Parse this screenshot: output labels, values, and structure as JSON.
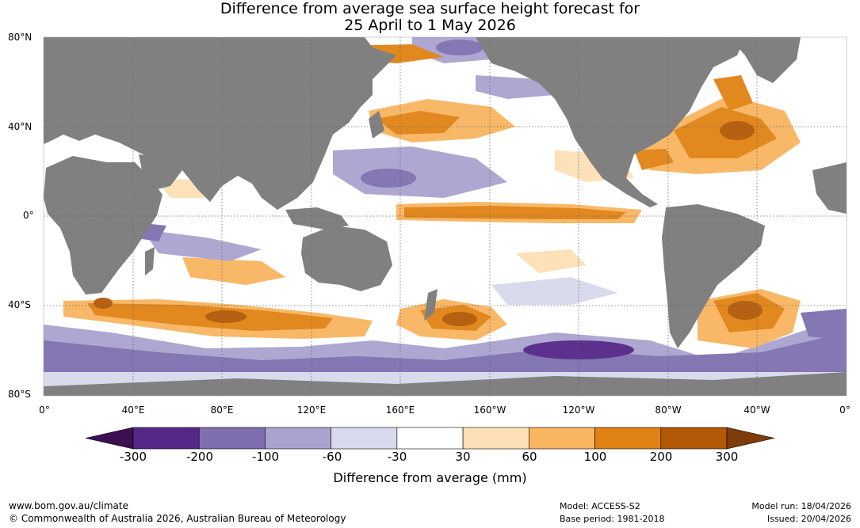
{
  "title": {
    "line1": "Difference from average sea surface height forecast for",
    "line2": "25 April to 1 May 2026"
  },
  "axes": {
    "lat_labels": [
      "80°N",
      "40°N",
      "0°",
      "40°S",
      "80°S"
    ],
    "lon_labels": [
      "0°",
      "40°E",
      "80°E",
      "120°E",
      "160°E",
      "160°W",
      "120°W",
      "80°W",
      "40°W",
      "0°"
    ]
  },
  "legend": {
    "title": "Difference from average (mm)",
    "ticks": [
      "-300",
      "-200",
      "-100",
      "-60",
      "-30",
      "30",
      "60",
      "100",
      "200",
      "300"
    ],
    "colors": [
      "#3b0f52",
      "#542788",
      "#7f6fb0",
      "#aaa3cf",
      "#d8d9ec",
      "#ffffff",
      "#fde0b5",
      "#f9b560",
      "#e08214",
      "#b35806",
      "#7f3b08"
    ]
  },
  "footer": {
    "url": "www.bom.gov.au/climate",
    "copyright": "© Commonwealth of Australia 2026, Australian Bureau of Meteorology",
    "model": "Model: ACCESS-S2",
    "base_period": "Base period: 1981-2018",
    "model_run": "Model run: 18/04/2026",
    "issued": "Issued: 20/04/2026"
  },
  "colors": {
    "land": "#808080",
    "ocean": "#ffffff",
    "grid": "#666666"
  },
  "icons": {
    "grid": "dotted-graticule"
  }
}
